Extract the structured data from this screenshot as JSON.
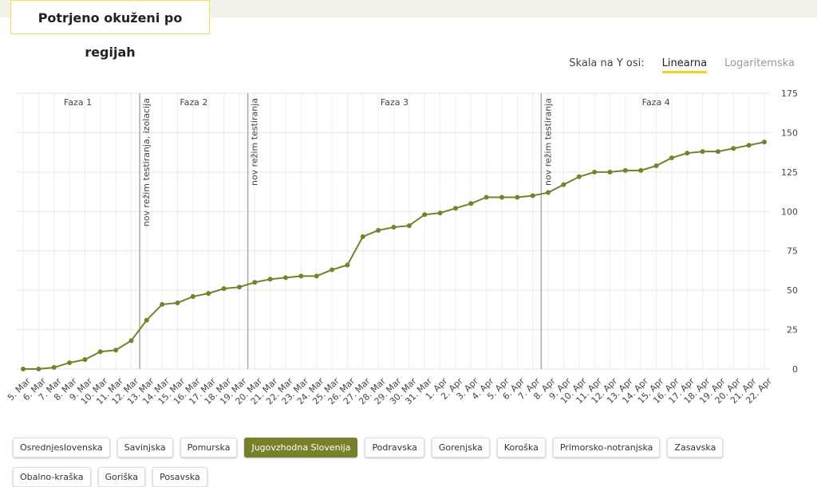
{
  "title": "Potrjeno okuženi po regijah",
  "scale_toggle": {
    "label": "Skala na Y osi:",
    "options": [
      "Linearna",
      "Logaritemska"
    ],
    "active": "Linearna"
  },
  "chart_data": {
    "type": "line",
    "categories": [
      "5. Mar",
      "6. Mar",
      "7. Mar",
      "8. Mar",
      "9. Mar",
      "10. Mar",
      "11. Mar",
      "12. Mar",
      "13. Mar",
      "14. Mar",
      "15. Mar",
      "16. Mar",
      "17. Mar",
      "18. Mar",
      "19. Mar",
      "20. Mar",
      "21. Mar",
      "22. Mar",
      "23. Mar",
      "24. Mar",
      "25. Mar",
      "26. Mar",
      "27. Mar",
      "28. Mar",
      "29. Mar",
      "30. Mar",
      "31. Mar",
      "1. Apr",
      "2. Apr",
      "3. Apr",
      "4. Apr",
      "5. Apr",
      "6. Apr",
      "7. Apr",
      "8. Apr",
      "9. Apr",
      "10. Apr",
      "11. Apr",
      "12. Apr",
      "13. Apr",
      "14. Apr",
      "15. Apr",
      "16. Apr",
      "17. Apr",
      "18. Apr",
      "19. Apr",
      "20. Apr",
      "21. Apr",
      "22. Apr"
    ],
    "values": [
      0,
      0,
      1,
      4,
      6,
      11,
      12,
      18,
      31,
      41,
      42,
      46,
      48,
      51,
      52,
      55,
      57,
      58,
      59,
      59,
      63,
      66,
      84,
      88,
      90,
      91,
      98,
      99,
      102,
      105,
      109,
      109,
      109,
      110,
      112,
      117,
      122,
      125,
      125,
      126,
      126,
      129,
      134,
      137,
      138,
      138,
      140,
      142,
      144
    ],
    "color": "#7a7f2a",
    "ylim": [
      0,
      175
    ],
    "yticks": [
      0,
      25,
      50,
      75,
      100,
      125,
      150,
      175
    ],
    "grid": true,
    "events": [
      {
        "x": "13. Mar",
        "label": "nov režim testiranja, izolacija"
      },
      {
        "x": "20. Mar",
        "label": "nov režim testiranja"
      },
      {
        "x": "8. Apr",
        "label": "nov režim testiranja"
      }
    ],
    "phases": [
      "Faza 1",
      "Faza 2",
      "Faza 3",
      "Faza 4"
    ]
  },
  "regions": {
    "items": [
      "Osrednjeslovenska",
      "Savinjska",
      "Pomurska",
      "Jugovzhodna Slovenija",
      "Podravska",
      "Gorenjska",
      "Koroška",
      "Primorsko-notranjska",
      "Zasavska",
      "Obalno-kraška",
      "Goriška",
      "Posavska"
    ],
    "active": "Jugovzhodna Slovenija"
  }
}
